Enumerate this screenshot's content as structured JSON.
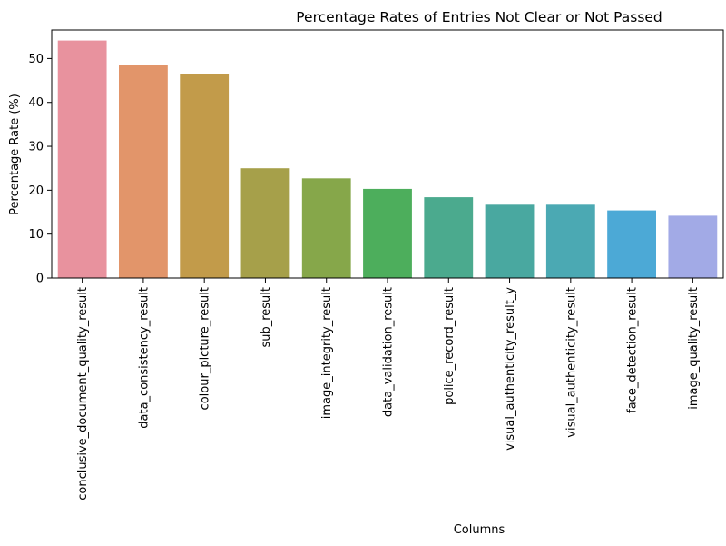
{
  "chart_data": {
    "type": "bar",
    "title": "Percentage Rates of Entries Not Clear or Not Passed",
    "xlabel": "Columns",
    "ylabel": "Percentage Rate (%)",
    "ylim": [
      0,
      56.5
    ],
    "yticks": [
      0,
      10,
      20,
      30,
      40,
      50
    ],
    "grid": false,
    "categories": [
      "conclusive_document_quality_result",
      "data_consistency_result",
      "colour_picture_result",
      "sub_result",
      "image_integrity_result",
      "data_validation_result",
      "police_record_result",
      "visual_authenticity_result_y",
      "visual_authenticity_result",
      "face_detection_result",
      "image_quality_result"
    ],
    "values": [
      54.1,
      48.6,
      46.5,
      25.0,
      22.7,
      20.3,
      18.4,
      16.7,
      16.7,
      15.4,
      14.2
    ],
    "colors": [
      "#E8929E",
      "#E2956A",
      "#C29B4A",
      "#A6A04A",
      "#86A74A",
      "#4DAE5C",
      "#4BAA8E",
      "#49A8A0",
      "#4BA9B3",
      "#4CA9D6",
      "#A2AAE6"
    ]
  }
}
